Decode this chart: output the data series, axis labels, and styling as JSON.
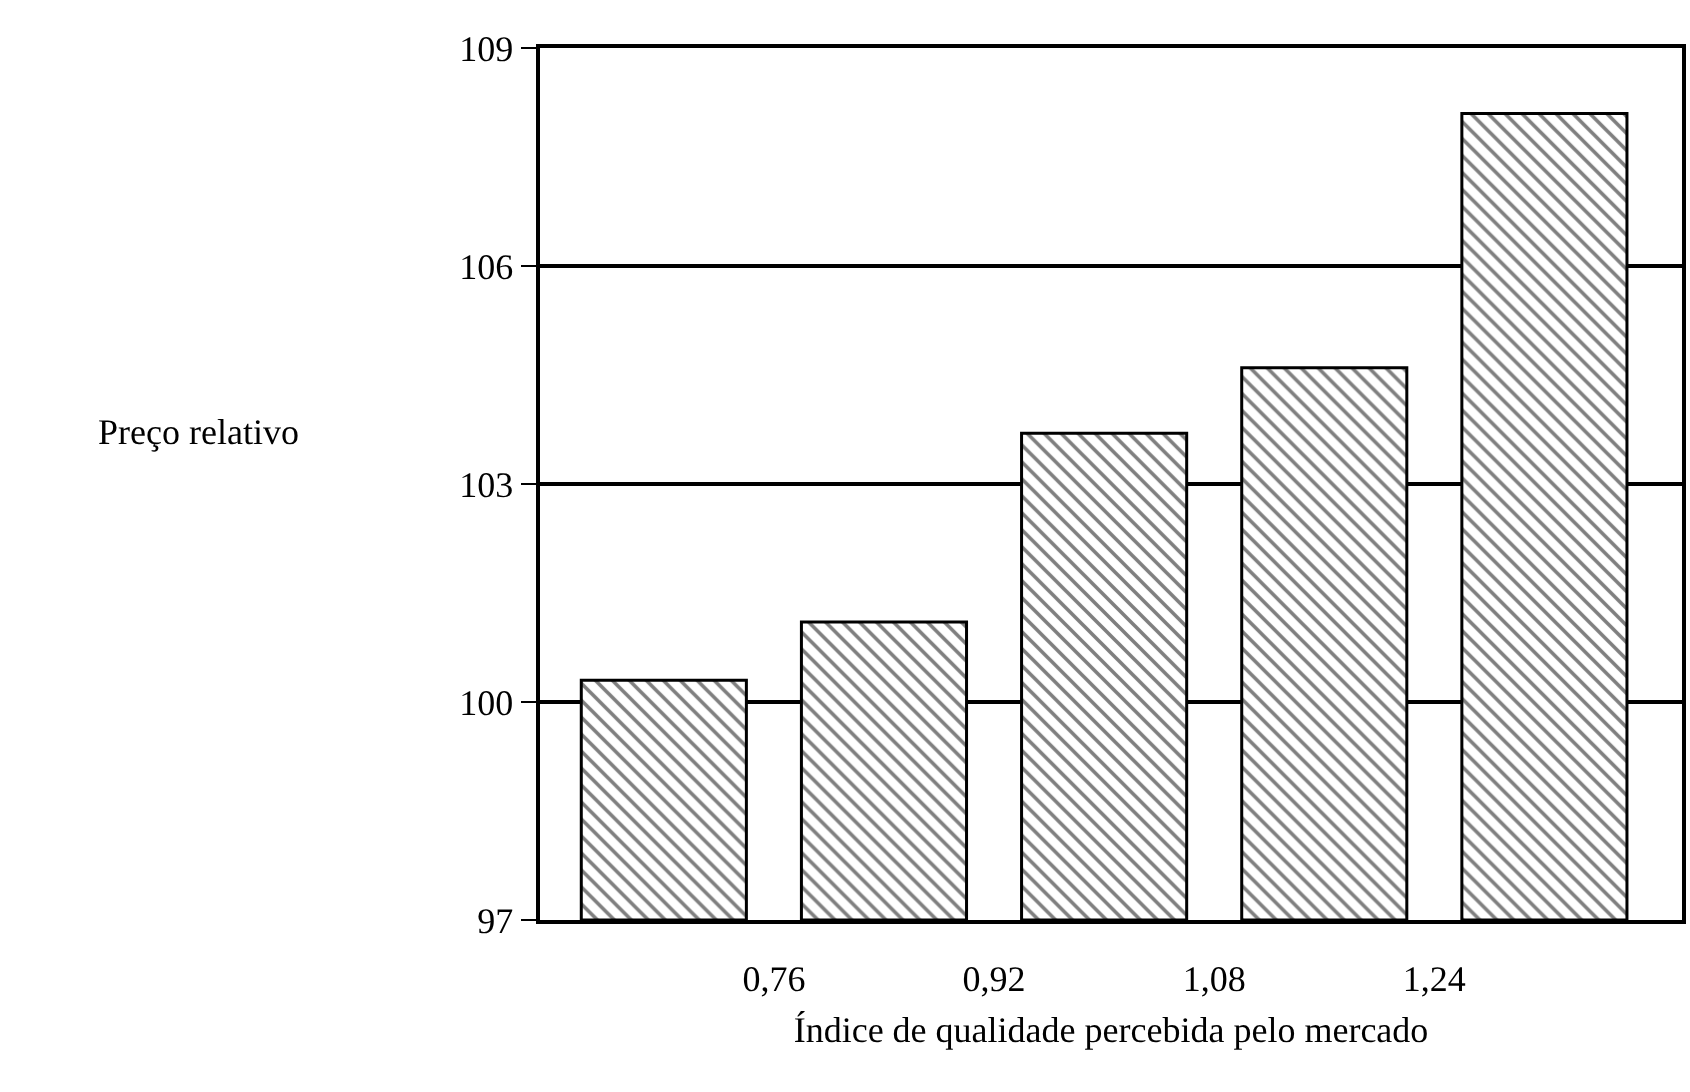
{
  "chart_data": {
    "type": "bar",
    "xlabel": "Índice de qualidade percebida pelo mercado",
    "ylabel": "Preço relativo",
    "x": [
      0.68,
      0.84,
      1.0,
      1.16,
      1.32
    ],
    "values": [
      100.3,
      101.1,
      103.7,
      104.6,
      108.1
    ],
    "color": "#000000",
    "xlim": [
      0.59,
      1.42
    ],
    "xticks": [
      {
        "value": 0.76,
        "label": "0,76"
      },
      {
        "value": 0.92,
        "label": "0,92"
      },
      {
        "value": 1.08,
        "label": "1,08"
      },
      {
        "value": 1.24,
        "label": "1,24"
      }
    ],
    "ylim": [
      97,
      109
    ],
    "yticks": [
      97,
      100,
      103,
      106,
      109
    ],
    "grid": "y"
  }
}
